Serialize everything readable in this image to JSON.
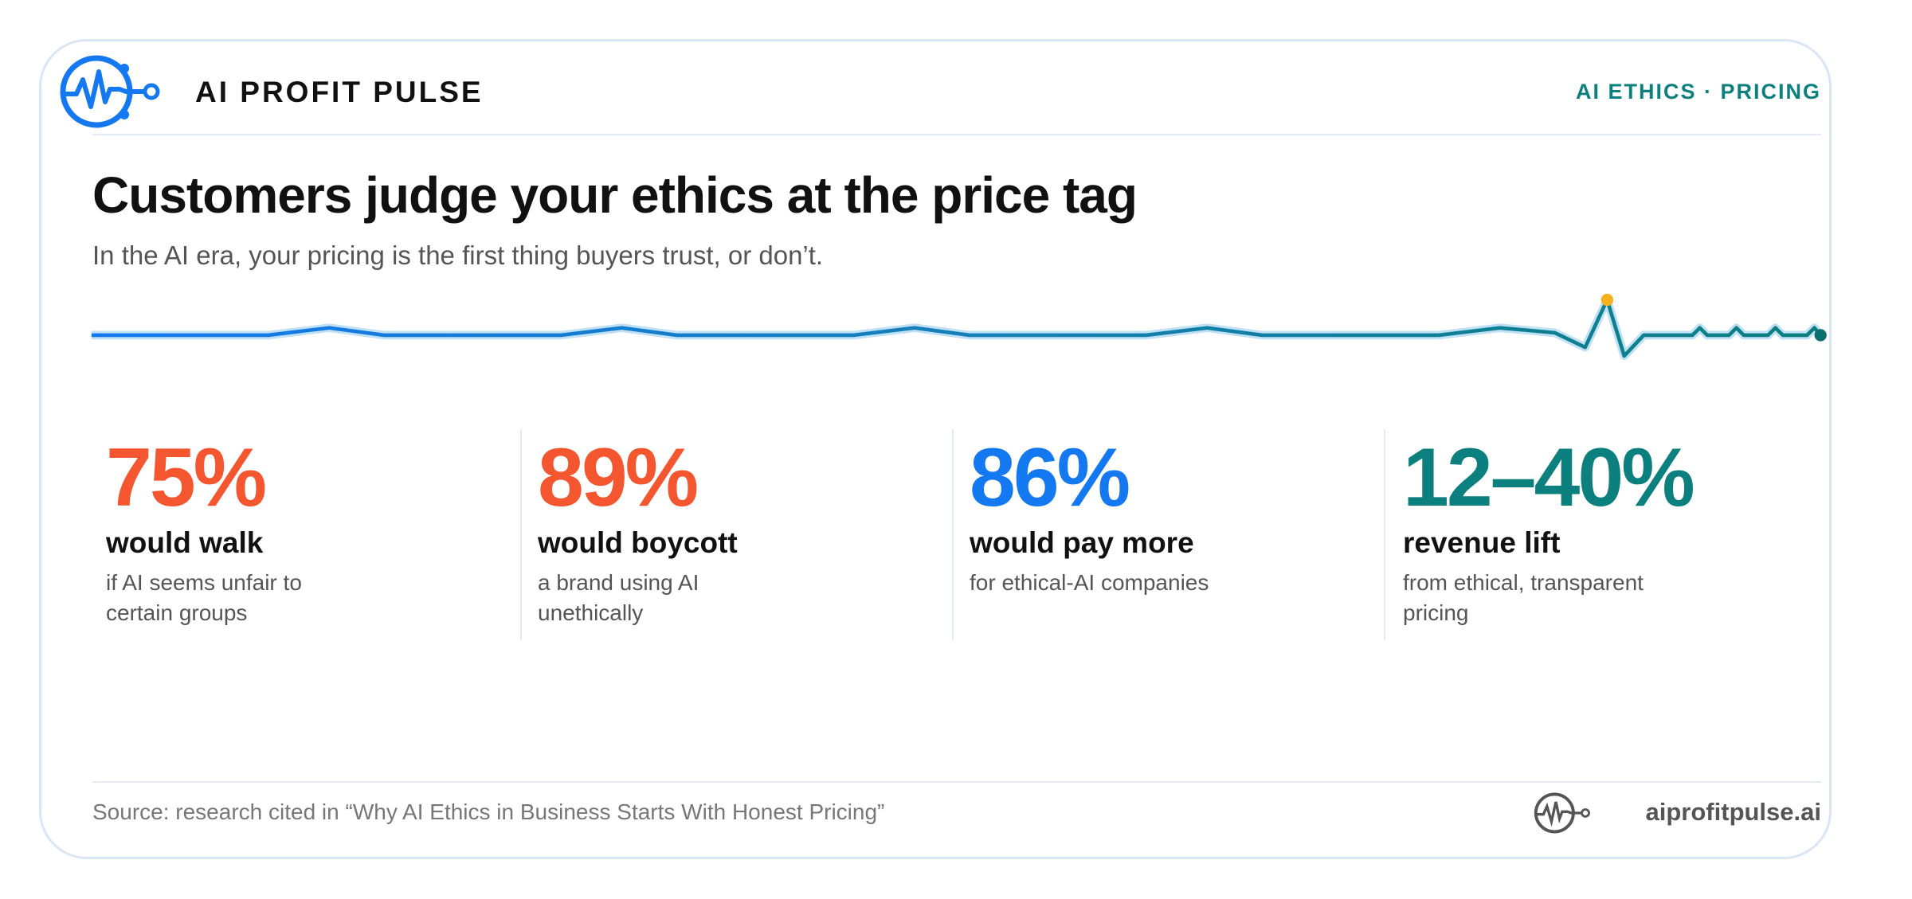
{
  "header": {
    "brand": "AI PROFIT PULSE",
    "tag": "AI ETHICS · PRICING"
  },
  "title": "Customers judge your ethics at the price tag",
  "subtitle": "In the AI era, your pricing is the first thing buyers trust, or don’t.",
  "stats": [
    {
      "value": "75%",
      "label": "would walk",
      "description": [
        "if AI seems unfair to",
        "certain groups"
      ]
    },
    {
      "value": "89%",
      "label": "would boycott",
      "description": [
        "a brand using AI",
        "unethically"
      ]
    },
    {
      "value": "86%",
      "label": "would pay more",
      "description": [
        "for ethical-AI companies"
      ]
    },
    {
      "value": "12–40%",
      "label": "revenue lift",
      "description": [
        "from ethical, transparent",
        "pricing"
      ]
    }
  ],
  "footer": {
    "source": "Source: research cited in “Why AI Ethics in Business Starts With Honest Pricing”",
    "domain": "aiprofitpulse.ai"
  }
}
